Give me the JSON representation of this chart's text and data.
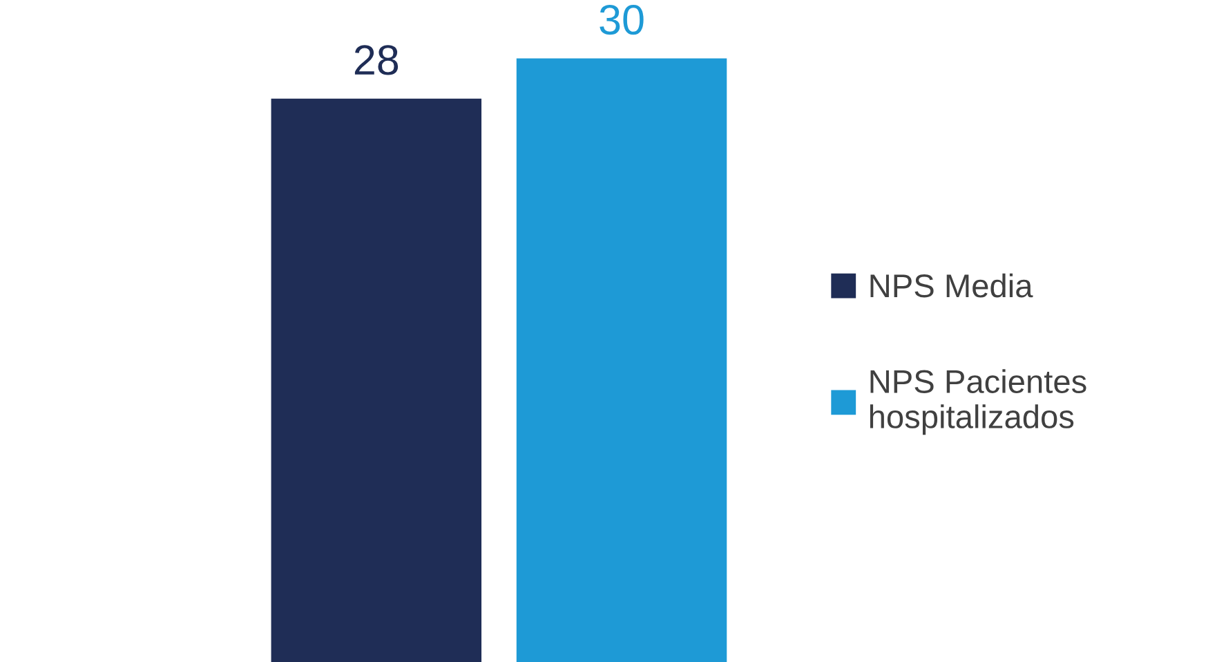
{
  "chart_data": {
    "type": "bar",
    "categories": [
      null
    ],
    "series": [
      {
        "name": "NPS Media",
        "color": "#1f2d56",
        "values": [
          28
        ]
      },
      {
        "name": "NPS Pacientes\nhospitalizados",
        "color": "#1e9ad6",
        "values": [
          30
        ]
      }
    ],
    "data_labels": true,
    "legend": "right",
    "grid": false
  }
}
